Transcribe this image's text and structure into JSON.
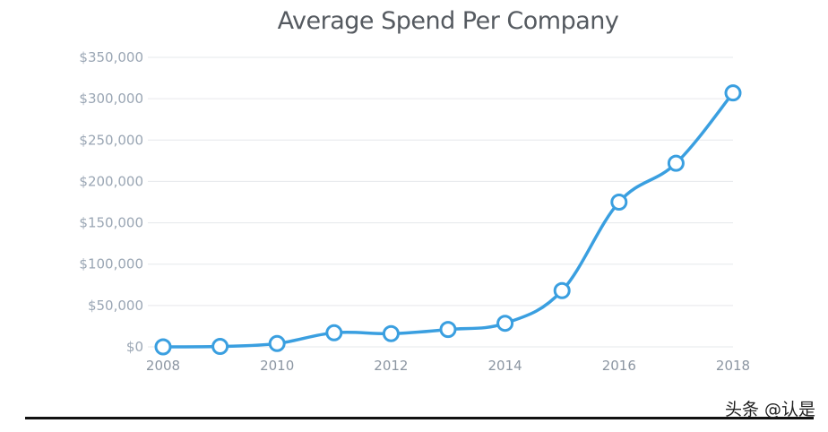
{
  "chart_data": {
    "type": "line",
    "title": "Average Spend Per Company",
    "categories": [
      "2008",
      "2009",
      "2010",
      "2011",
      "2012",
      "2013",
      "2014",
      "2015",
      "2016",
      "2017",
      "2018"
    ],
    "x_tick_labels": [
      "2008",
      "2010",
      "2012",
      "2014",
      "2016",
      "2018"
    ],
    "y_tick_labels": [
      "$0",
      "$50,000",
      "$100,000",
      "$150,000",
      "$200,000",
      "$250,000",
      "$300,000",
      "$350,000"
    ],
    "ylim": [
      0,
      350000
    ],
    "series": [
      {
        "values": [
          0,
          500,
          4000,
          17000,
          16000,
          21000,
          28500,
          68000,
          175000,
          222000,
          307000
        ]
      }
    ],
    "grid": true,
    "line_color": "#3a9fe0",
    "marker": "hollow-circle"
  },
  "watermark": "头条 @认是"
}
